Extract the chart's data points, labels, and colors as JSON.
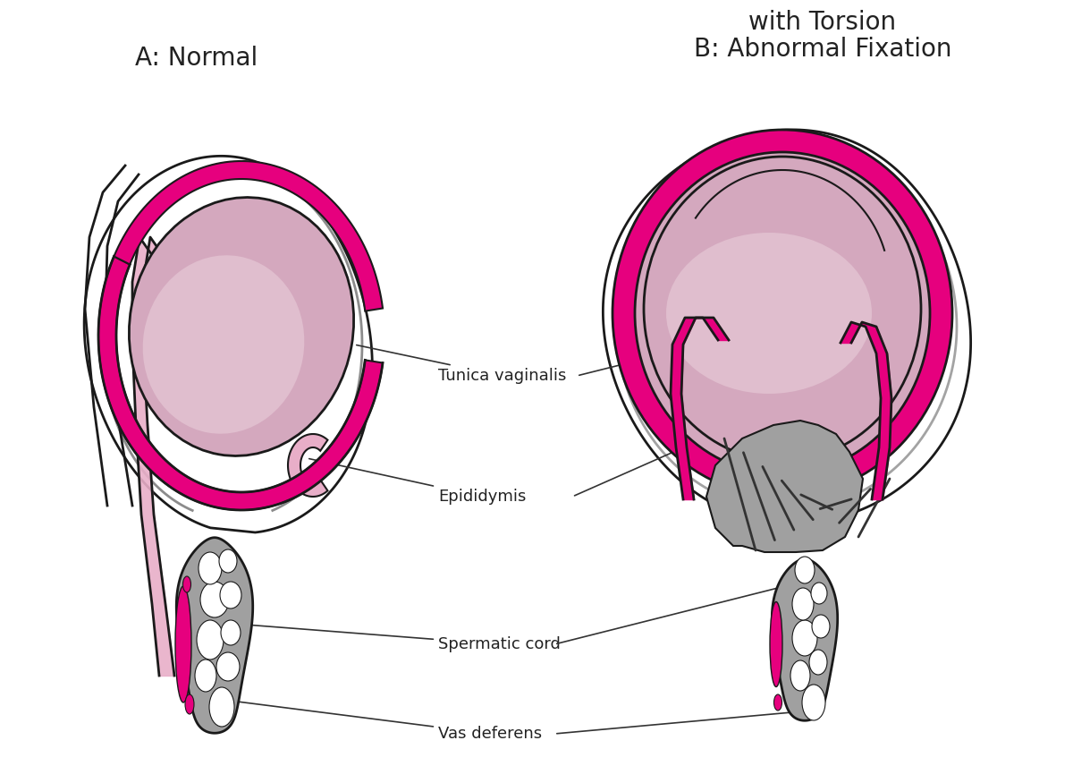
{
  "label_A": "A: Normal",
  "label_B": "B: Abnormal Fixation\nwith Torsion",
  "annotation_vas_deferens": "Vas deferens",
  "annotation_spermatic_cord": "Spermatic cord",
  "annotation_epididymis": "Epididymis",
  "annotation_tunica_vaginalis": "Tunica vaginalis",
  "color_bg": "#ffffff",
  "color_outline": "#1a1a1a",
  "color_magenta": "#e6007e",
  "color_pink_light": "#e8aec8",
  "color_pink_medium": "#d88aaa",
  "color_testis_fill": "#d4a8be",
  "color_testis_light": "#e0bece",
  "color_gray_cord": "#a0a0a0",
  "color_gray_dark": "#606060",
  "color_scrotal_fill": "#f2e4ec",
  "color_skin_outer": "#f8f0f4",
  "font_label": 20,
  "font_annotation": 13
}
